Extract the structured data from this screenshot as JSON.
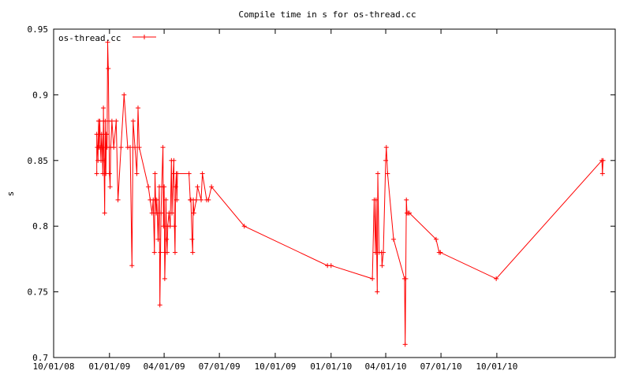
{
  "chart_data": {
    "type": "line",
    "title": "Compile time in s for os-thread.cc",
    "xlabel": "",
    "ylabel": "s",
    "x_is_date": true,
    "xlim": [
      "2008-10-01",
      "2011-04-14"
    ],
    "ylim": [
      0.7,
      0.95
    ],
    "x_ticks": [
      {
        "date": "2008-10-01",
        "label": "10/01/08"
      },
      {
        "date": "2009-01-01",
        "label": "01/01/09"
      },
      {
        "date": "2009-04-01",
        "label": "04/01/09"
      },
      {
        "date": "2009-07-01",
        "label": "07/01/09"
      },
      {
        "date": "2009-10-01",
        "label": "10/01/09"
      },
      {
        "date": "2010-01-01",
        "label": "01/01/10"
      },
      {
        "date": "2010-04-01",
        "label": "04/01/10"
      },
      {
        "date": "2010-07-01",
        "label": "07/01/10"
      },
      {
        "date": "2010-10-01",
        "label": "10/01/10"
      }
    ],
    "y_ticks": [
      {
        "value": 0.7,
        "label": "0.7"
      },
      {
        "value": 0.75,
        "label": "0.75"
      },
      {
        "value": 0.8,
        "label": "0.8"
      },
      {
        "value": 0.85,
        "label": "0.85"
      },
      {
        "value": 0.9,
        "label": "0.9"
      },
      {
        "value": 0.95,
        "label": "0.95"
      }
    ],
    "grid": false,
    "legend_position": "top-left",
    "series": [
      {
        "name": "os-thread.cc",
        "color": "#ff0000",
        "marker": "plus",
        "points": [
          [
            "2008-12-11",
            0.84
          ],
          [
            "2008-12-11",
            0.87
          ],
          [
            "2008-12-12",
            0.86
          ],
          [
            "2008-12-13",
            0.85
          ],
          [
            "2008-12-14",
            0.88
          ],
          [
            "2008-12-15",
            0.86
          ],
          [
            "2008-12-15",
            0.87
          ],
          [
            "2008-12-16",
            0.88
          ],
          [
            "2008-12-17",
            0.86
          ],
          [
            "2008-12-18",
            0.85
          ],
          [
            "2008-12-19",
            0.87
          ],
          [
            "2008-12-20",
            0.86
          ],
          [
            "2008-12-21",
            0.84
          ],
          [
            "2008-12-22",
            0.88
          ],
          [
            "2008-12-22",
            0.89
          ],
          [
            "2008-12-23",
            0.85
          ],
          [
            "2008-12-24",
            0.81
          ],
          [
            "2008-12-25",
            0.88
          ],
          [
            "2008-12-26",
            0.84
          ],
          [
            "2008-12-27",
            0.87
          ],
          [
            "2008-12-28",
            0.86
          ],
          [
            "2008-12-29",
            0.94
          ],
          [
            "2008-12-30",
            0.92
          ],
          [
            "2008-12-31",
            0.88
          ],
          [
            "2009-01-01",
            0.84
          ],
          [
            "2009-01-02",
            0.83
          ],
          [
            "2009-01-03",
            0.86
          ],
          [
            "2009-01-05",
            0.88
          ],
          [
            "2009-01-08",
            0.86
          ],
          [
            "2009-01-12",
            0.88
          ],
          [
            "2009-01-15",
            0.82
          ],
          [
            "2009-01-20",
            0.86
          ],
          [
            "2009-01-25",
            0.9
          ],
          [
            "2009-01-31",
            0.86
          ],
          [
            "2009-02-04",
            0.86
          ],
          [
            "2009-02-07",
            0.77
          ],
          [
            "2009-02-09",
            0.88
          ],
          [
            "2009-02-12",
            0.86
          ],
          [
            "2009-02-15",
            0.84
          ],
          [
            "2009-02-17",
            0.89
          ],
          [
            "2009-02-19",
            0.86
          ],
          [
            "2009-03-06",
            0.83
          ],
          [
            "2009-03-09",
            0.82
          ],
          [
            "2009-03-12",
            0.81
          ],
          [
            "2009-03-14",
            0.82
          ],
          [
            "2009-03-16",
            0.78
          ],
          [
            "2009-03-17",
            0.84
          ],
          [
            "2009-03-18",
            0.82
          ],
          [
            "2009-03-19",
            0.81
          ],
          [
            "2009-03-20",
            0.82
          ],
          [
            "2009-03-22",
            0.79
          ],
          [
            "2009-03-24",
            0.83
          ],
          [
            "2009-03-25",
            0.74
          ],
          [
            "2009-03-26",
            0.78
          ],
          [
            "2009-03-27",
            0.81
          ],
          [
            "2009-03-28",
            0.83
          ],
          [
            "2009-03-30",
            0.86
          ],
          [
            "2009-03-31",
            0.8
          ],
          [
            "2009-04-01",
            0.83
          ],
          [
            "2009-04-02",
            0.76
          ],
          [
            "2009-04-03",
            0.78
          ],
          [
            "2009-04-04",
            0.82
          ],
          [
            "2009-04-05",
            0.79
          ],
          [
            "2009-04-06",
            0.78
          ],
          [
            "2009-04-07",
            0.8
          ],
          [
            "2009-04-09",
            0.81
          ],
          [
            "2009-04-11",
            0.8
          ],
          [
            "2009-04-13",
            0.85
          ],
          [
            "2009-04-14",
            0.81
          ],
          [
            "2009-04-16",
            0.84
          ],
          [
            "2009-04-17",
            0.85
          ],
          [
            "2009-04-18",
            0.8
          ],
          [
            "2009-04-19",
            0.78
          ],
          [
            "2009-04-20",
            0.83
          ],
          [
            "2009-04-21",
            0.84
          ],
          [
            "2009-04-22",
            0.82
          ],
          [
            "2009-04-23",
            0.84
          ],
          [
            "2009-05-12",
            0.84
          ],
          [
            "2009-05-14",
            0.82
          ],
          [
            "2009-05-15",
            0.82
          ],
          [
            "2009-05-17",
            0.79
          ],
          [
            "2009-05-18",
            0.78
          ],
          [
            "2009-05-19",
            0.82
          ],
          [
            "2009-05-20",
            0.81
          ],
          [
            "2009-05-24",
            0.82
          ],
          [
            "2009-05-26",
            0.83
          ],
          [
            "2009-06-01",
            0.82
          ],
          [
            "2009-06-03",
            0.84
          ],
          [
            "2009-06-10",
            0.82
          ],
          [
            "2009-06-13",
            0.82
          ],
          [
            "2009-06-18",
            0.83
          ],
          [
            "2009-08-11",
            0.8
          ],
          [
            "2009-12-26",
            0.77
          ],
          [
            "2010-01-01",
            0.77
          ],
          [
            "2010-03-10",
            0.76
          ],
          [
            "2010-03-13",
            0.82
          ],
          [
            "2010-03-15",
            0.78
          ],
          [
            "2010-03-16",
            0.82
          ],
          [
            "2010-03-18",
            0.75
          ],
          [
            "2010-03-19",
            0.84
          ],
          [
            "2010-03-21",
            0.78
          ],
          [
            "2010-03-25",
            0.78
          ],
          [
            "2010-03-26",
            0.77
          ],
          [
            "2010-03-28",
            0.78
          ],
          [
            "2010-04-01",
            0.85
          ],
          [
            "2010-04-02",
            0.86
          ],
          [
            "2010-04-04",
            0.84
          ],
          [
            "2010-04-14",
            0.79
          ],
          [
            "2010-05-02",
            0.76
          ],
          [
            "2010-05-03",
            0.71
          ],
          [
            "2010-05-04",
            0.76
          ],
          [
            "2010-05-05",
            0.82
          ],
          [
            "2010-05-06",
            0.81
          ],
          [
            "2010-05-08",
            0.81
          ],
          [
            "2010-05-10",
            0.81
          ],
          [
            "2010-06-23",
            0.79
          ],
          [
            "2010-06-28",
            0.78
          ],
          [
            "2010-06-30",
            0.78
          ],
          [
            "2010-09-30",
            0.76
          ],
          [
            "2011-03-23",
            0.85
          ],
          [
            "2011-03-24",
            0.84
          ],
          [
            "2011-03-25",
            0.85
          ]
        ]
      }
    ]
  }
}
